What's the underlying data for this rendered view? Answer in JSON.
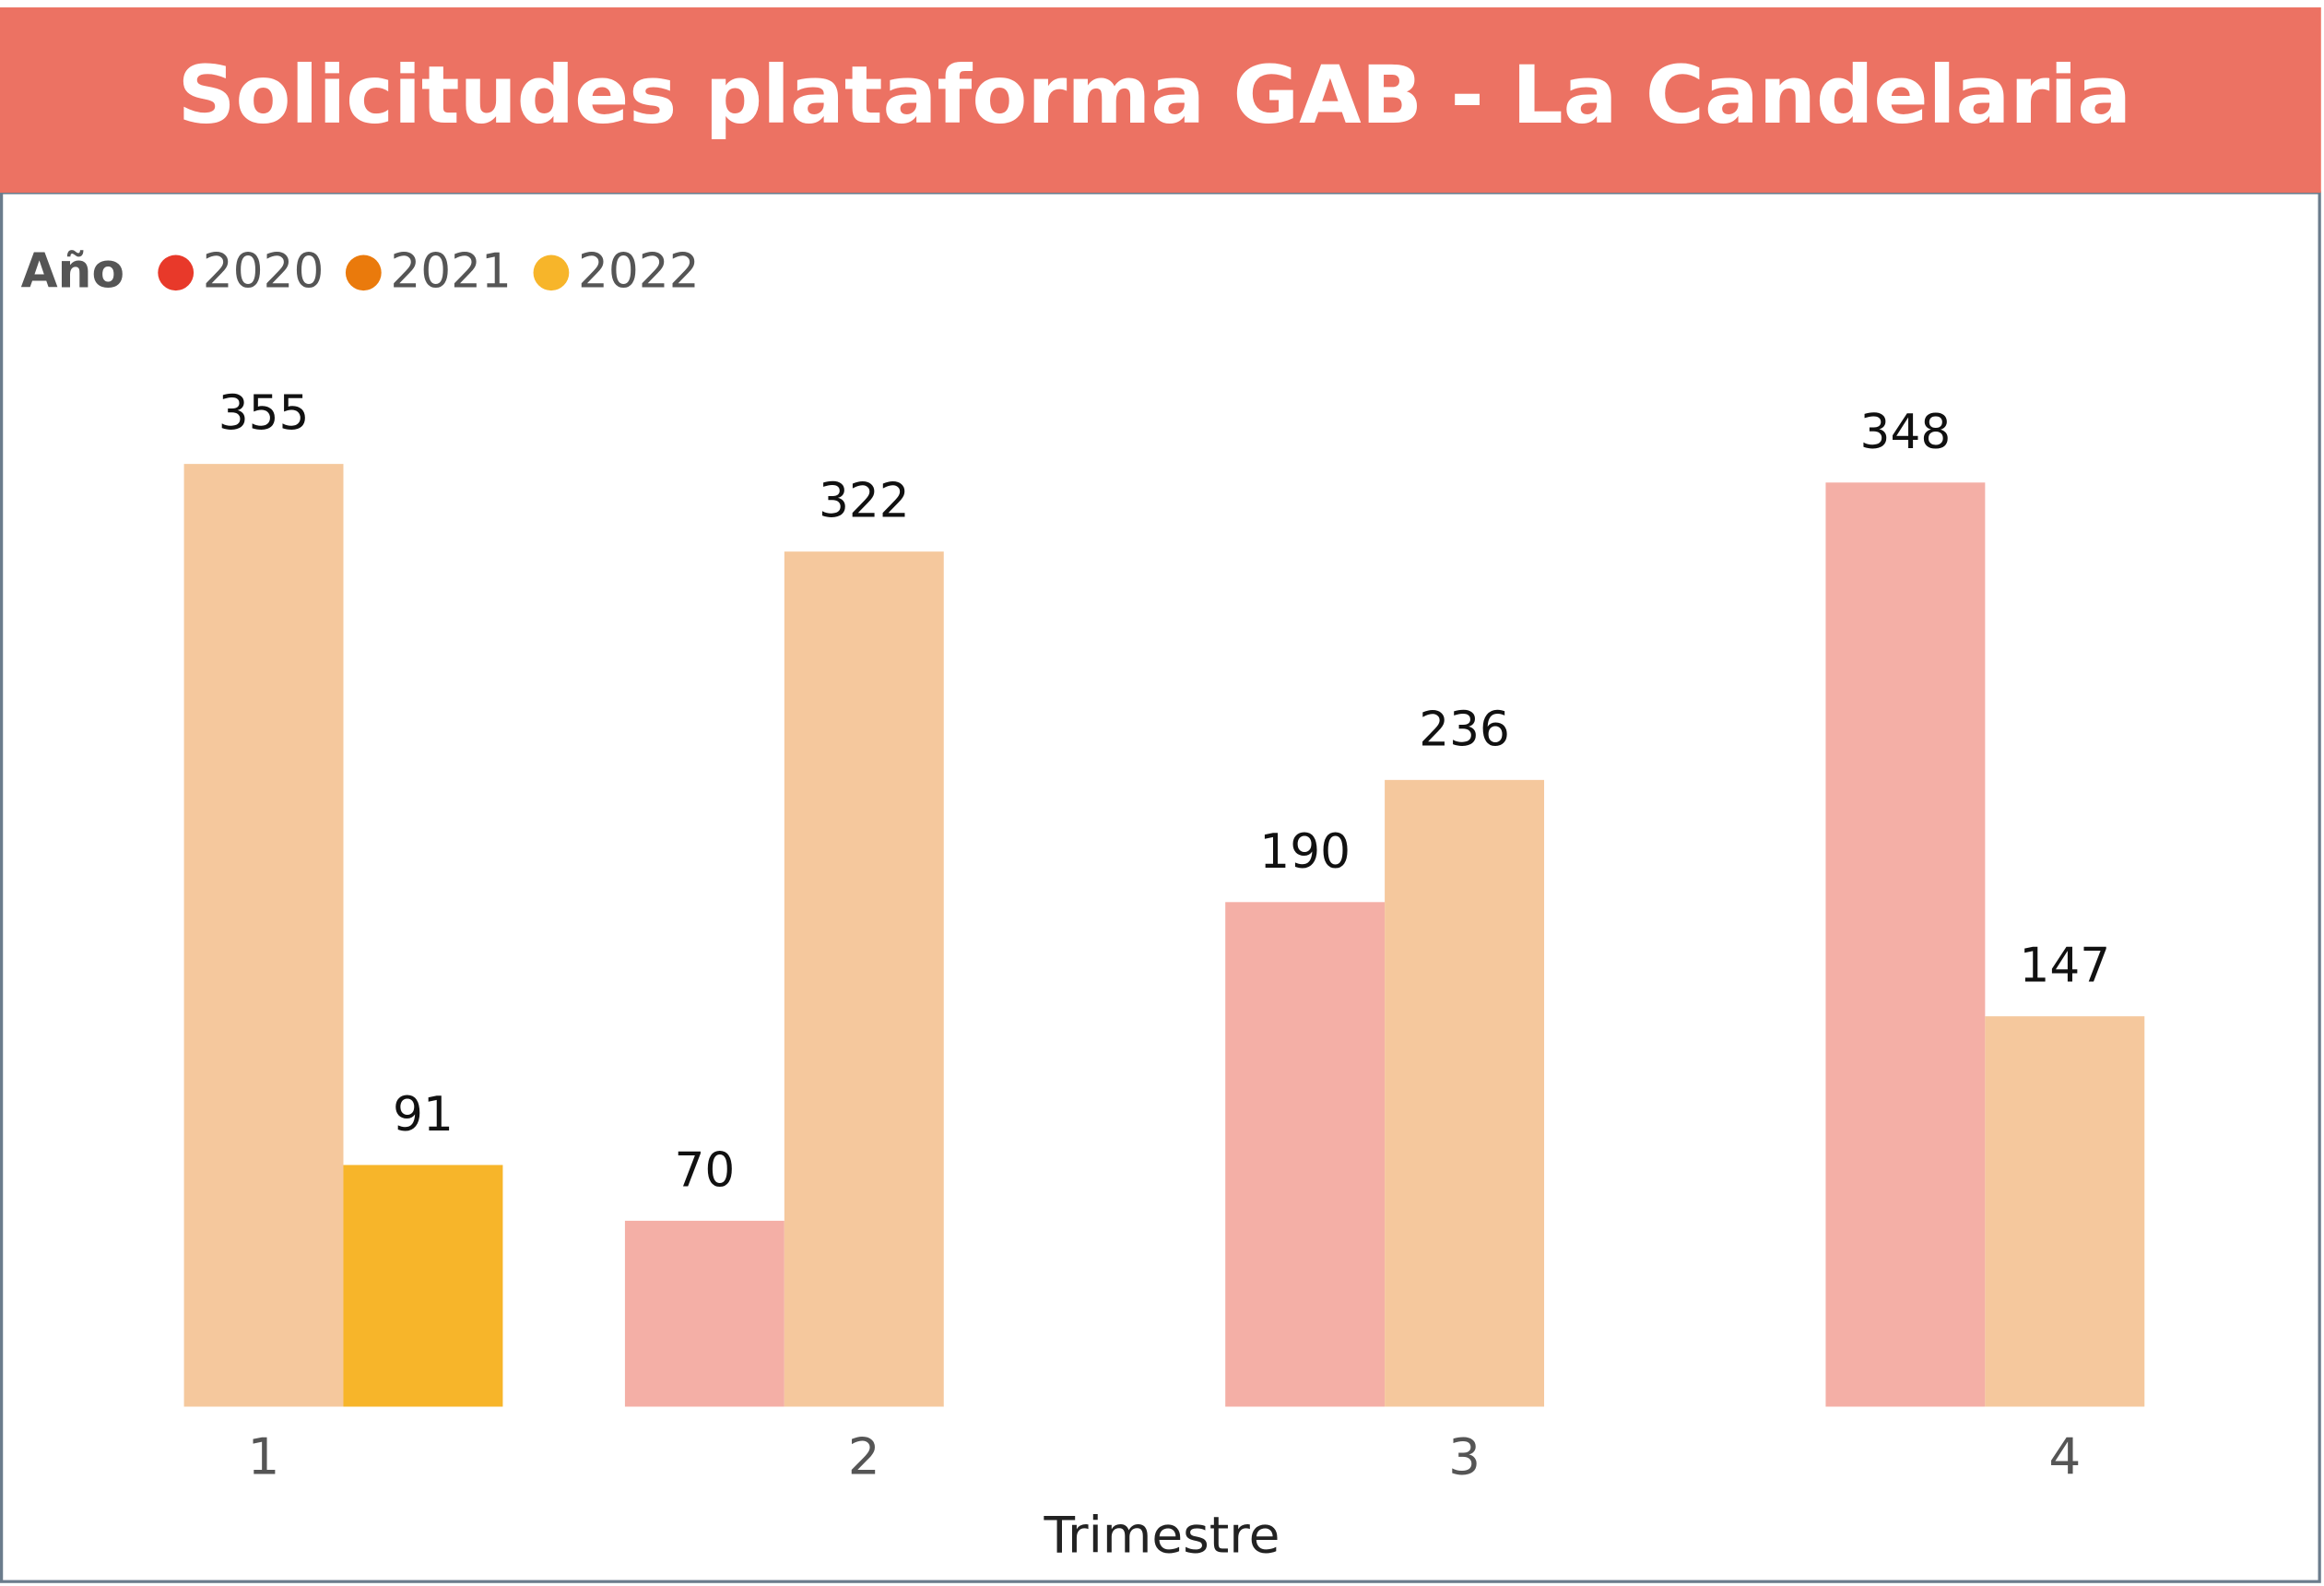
{
  "chart_data": {
    "type": "bar",
    "title": "Solicitudes plataforma GAB - La Candelaria",
    "legend_title": "Año",
    "x_label": "Trimestre",
    "categories": [
      "1",
      "2",
      "3",
      "4"
    ],
    "series": [
      {
        "name": "2020",
        "color": "#e8392a",
        "bar_color": "#f4afa6",
        "values": [
          null,
          70,
          190,
          348
        ]
      },
      {
        "name": "2021",
        "color": "#ea7a0c",
        "bar_color": "#f5c89d",
        "values": [
          355,
          322,
          236,
          147
        ]
      },
      {
        "name": "2022",
        "color": "#f7b52a",
        "bar_color": "#f7b52a",
        "values": [
          91,
          null,
          null,
          null
        ]
      }
    ],
    "legend": "top-left"
  }
}
